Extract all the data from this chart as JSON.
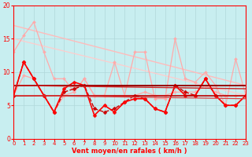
{
  "background_color": "#c8eef0",
  "grid_color": "#b0d8da",
  "text_color": "#ff0000",
  "xlabel": "Vent moyen/en rafales ( km/h )",
  "xlim": [
    0,
    23
  ],
  "ylim": [
    0,
    20
  ],
  "yticks": [
    0,
    5,
    10,
    15,
    20
  ],
  "xticks": [
    0,
    1,
    2,
    3,
    4,
    5,
    6,
    7,
    8,
    9,
    10,
    11,
    12,
    13,
    14,
    15,
    16,
    17,
    18,
    19,
    20,
    21,
    22,
    23
  ],
  "lines": [
    {
      "x": [
        0,
        23
      ],
      "y": [
        17.0,
        8.0
      ],
      "color": "#ffbbbb",
      "linewidth": 1.0,
      "marker": null,
      "markersize": 0,
      "linestyle": "-"
    },
    {
      "x": [
        0,
        23
      ],
      "y": [
        15.0,
        6.5
      ],
      "color": "#ffcccc",
      "linewidth": 0.9,
      "marker": null,
      "markersize": 0,
      "linestyle": "-"
    },
    {
      "x": [
        0,
        1,
        2,
        3,
        4,
        5,
        6,
        7,
        8,
        9,
        10,
        11,
        12,
        13,
        14,
        15,
        16,
        17,
        18,
        19,
        20,
        21,
        22,
        23
      ],
      "y": [
        13.0,
        15.5,
        17.5,
        13.0,
        9.0,
        9.0,
        7.0,
        9.0,
        6.5,
        6.5,
        11.5,
        6.5,
        13.0,
        13.0,
        6.0,
        6.0,
        15.0,
        9.0,
        8.5,
        10.0,
        8.0,
        5.0,
        12.0,
        6.5
      ],
      "color": "#ffaaaa",
      "linewidth": 0.9,
      "marker": "D",
      "markersize": 2.0,
      "linestyle": "-"
    },
    {
      "x": [
        0,
        1,
        2,
        3,
        4,
        5,
        6,
        7,
        8,
        9,
        10,
        11,
        12,
        13,
        14,
        15,
        16,
        17,
        18,
        19,
        20,
        21,
        22,
        23
      ],
      "y": [
        6.5,
        9.5,
        9.0,
        6.5,
        4.0,
        6.5,
        7.0,
        9.0,
        6.5,
        6.5,
        6.5,
        6.5,
        6.5,
        7.0,
        6.5,
        6.5,
        7.0,
        7.0,
        7.0,
        8.0,
        7.0,
        6.5,
        6.5,
        6.5
      ],
      "color": "#ffaaaa",
      "linewidth": 0.9,
      "marker": "D",
      "markersize": 2.0,
      "linestyle": "-"
    },
    {
      "x": [
        0,
        1,
        2,
        3,
        4,
        5,
        6,
        7,
        8,
        9,
        10,
        11,
        12,
        13,
        14,
        15,
        16,
        17,
        18,
        19,
        20,
        21,
        22,
        23
      ],
      "y": [
        6.5,
        11.5,
        9.0,
        6.5,
        4.0,
        7.0,
        7.5,
        8.0,
        4.5,
        4.0,
        4.5,
        5.5,
        6.5,
        6.0,
        4.5,
        4.0,
        8.0,
        7.0,
        6.5,
        9.0,
        6.5,
        5.0,
        5.0,
        6.5
      ],
      "color": "#cc0000",
      "linewidth": 1.0,
      "marker": "D",
      "markersize": 2.5,
      "linestyle": "--"
    },
    {
      "x": [
        0,
        1,
        2,
        3,
        4,
        5,
        6,
        7,
        8,
        9,
        10,
        11,
        12,
        13,
        14,
        15,
        16,
        17,
        18,
        19,
        20,
        21,
        22,
        23
      ],
      "y": [
        6.5,
        11.5,
        9.0,
        6.5,
        4.0,
        7.5,
        8.5,
        8.0,
        3.5,
        5.0,
        4.0,
        5.5,
        6.0,
        6.0,
        4.5,
        4.0,
        8.0,
        6.5,
        6.5,
        9.0,
        6.5,
        5.0,
        5.0,
        6.5
      ],
      "color": "#ff0000",
      "linewidth": 1.2,
      "marker": "D",
      "markersize": 2.5,
      "linestyle": "-"
    },
    {
      "x": [
        0,
        23
      ],
      "y": [
        8.0,
        8.0
      ],
      "color": "#990000",
      "linewidth": 1.4,
      "marker": null,
      "markersize": 0,
      "linestyle": "-"
    },
    {
      "x": [
        0,
        23
      ],
      "y": [
        6.5,
        6.5
      ],
      "color": "#bb0000",
      "linewidth": 1.2,
      "marker": null,
      "markersize": 0,
      "linestyle": "-"
    },
    {
      "x": [
        0,
        23
      ],
      "y": [
        8.0,
        7.5
      ],
      "color": "#cc2222",
      "linewidth": 1.0,
      "marker": null,
      "markersize": 0,
      "linestyle": "-"
    },
    {
      "x": [
        0,
        23
      ],
      "y": [
        6.5,
        6.0
      ],
      "color": "#dd4444",
      "linewidth": 0.9,
      "marker": null,
      "markersize": 0,
      "linestyle": "-"
    }
  ]
}
